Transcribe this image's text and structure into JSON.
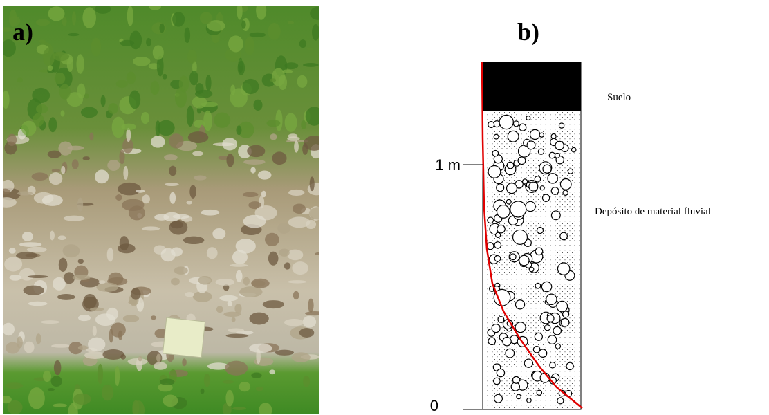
{
  "panel_a": {
    "label": "a)"
  },
  "panel_b": {
    "label": "b)",
    "scale": {
      "upper": "1 m",
      "lower": "0"
    },
    "layers": [
      {
        "name": "Suelo"
      },
      {
        "name": "Depósito de material fluvial"
      }
    ]
  }
}
